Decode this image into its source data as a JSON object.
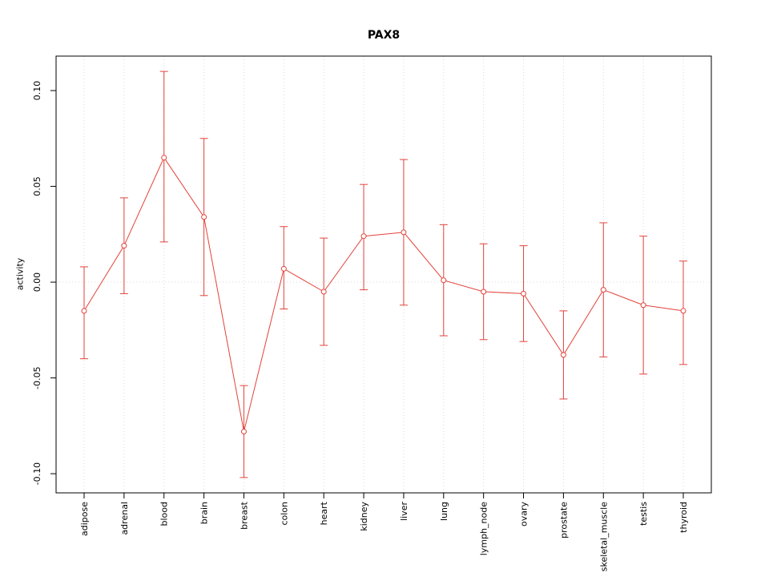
{
  "figure": {
    "title": "PAX8",
    "ylabel": "activity"
  },
  "chart_data": {
    "type": "line",
    "title": "PAX8",
    "xlabel": "",
    "ylabel": "activity",
    "legend": "none",
    "grid": "dotted vertical gridline at each category and dotted horizontal line at y=0",
    "marker": "open-circle",
    "error_bars": true,
    "categories": [
      "adipose",
      "adrenal",
      "blood",
      "brain",
      "breast",
      "colon",
      "heart",
      "kidney",
      "liver",
      "lung",
      "lymph_node",
      "ovary",
      "prostate",
      "skeletal_muscle",
      "testis",
      "thyroid"
    ],
    "series": [
      {
        "name": "activity",
        "values": [
          -0.015,
          0.019,
          0.065,
          0.034,
          -0.078,
          0.007,
          -0.005,
          0.024,
          0.026,
          0.001,
          -0.005,
          -0.006,
          -0.038,
          -0.004,
          -0.012,
          -0.015
        ],
        "lower": [
          -0.04,
          -0.006,
          0.021,
          -0.007,
          -0.102,
          -0.014,
          -0.033,
          -0.004,
          -0.012,
          -0.028,
          -0.03,
          -0.031,
          -0.061,
          -0.039,
          -0.048,
          -0.043
        ],
        "upper": [
          0.008,
          0.044,
          0.11,
          0.075,
          -0.054,
          0.029,
          0.023,
          0.051,
          0.064,
          0.03,
          0.02,
          0.019,
          -0.015,
          0.031,
          0.024,
          0.011
        ]
      }
    ],
    "ylim": [
      -0.11,
      0.118
    ],
    "yticks": [
      -0.1,
      -0.05,
      0.0,
      0.05,
      0.1
    ],
    "ytick_labels": [
      "-0.10",
      "-0.05",
      "0.00",
      "0.05",
      "0.10"
    ],
    "colors": {
      "series": "#e2423a",
      "grid": "#d9d9d9",
      "box": "#000000",
      "text": "#000000",
      "background": "#ffffff"
    }
  }
}
